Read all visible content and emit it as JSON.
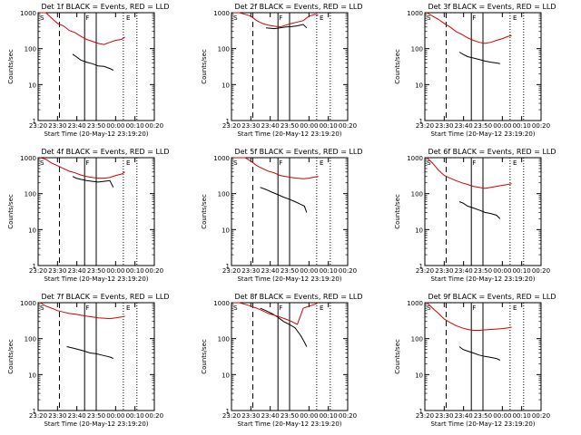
{
  "chart_data": [
    {
      "type": "line",
      "title": "Det 1f BLACK = Events, RED = LLD",
      "xlabel": "Start Time (20-May-12 23:19:20)",
      "ylabel": "Counts/sec",
      "yscale": "log",
      "ylim": [
        1,
        1000
      ],
      "xlim": [
        23.333,
        24.333
      ],
      "xticks": [
        "23:20",
        "23:30",
        "23:40",
        "23:50",
        "00:00",
        "00:10",
        "00:20"
      ],
      "yticks": [
        "1",
        "10",
        "100",
        "1000"
      ],
      "markers": [
        "S",
        "F",
        "E"
      ],
      "series": [
        {
          "name": "Events",
          "color": "#000000",
          "x": [
            23.63,
            23.66,
            23.7,
            23.75,
            23.8,
            23.85,
            23.9,
            23.95,
            23.98
          ],
          "y": [
            70,
            60,
            48,
            42,
            38,
            33,
            32,
            28,
            25
          ]
        },
        {
          "name": "LLD",
          "color": "#d00000",
          "x": [
            23.35,
            23.4,
            23.45,
            23.5,
            23.55,
            23.6,
            23.65,
            23.7,
            23.75,
            23.8,
            23.85,
            23.9,
            23.95,
            24.0,
            24.05,
            24.08
          ],
          "y": [
            1000,
            1000,
            700,
            500,
            430,
            320,
            280,
            220,
            180,
            160,
            140,
            130,
            150,
            170,
            180,
            210
          ]
        }
      ]
    },
    {
      "type": "line",
      "title": "Det 2f BLACK = Events, RED = LLD",
      "xlabel": "Start Time (20-May-12 23:19:20)",
      "ylabel": "Counts/sec",
      "yscale": "log",
      "ylim": [
        1,
        1000
      ],
      "xlim": [
        23.333,
        24.333
      ],
      "xticks": [
        "23:20",
        "23:30",
        "23:40",
        "23:50",
        "00:00",
        "00:10",
        "00:20"
      ],
      "yticks": [
        "1",
        "10",
        "100",
        "1000"
      ],
      "markers": [
        "S",
        "F",
        "E"
      ],
      "series": [
        {
          "name": "Events",
          "color": "#000000",
          "x": [
            23.63,
            23.66,
            23.7,
            23.75,
            23.8,
            23.85,
            23.9,
            23.95,
            23.98
          ],
          "y": [
            380,
            370,
            360,
            380,
            400,
            410,
            430,
            470,
            380
          ]
        },
        {
          "name": "LLD",
          "color": "#d00000",
          "x": [
            23.35,
            23.4,
            23.45,
            23.5,
            23.55,
            23.6,
            23.65,
            23.7,
            23.75,
            23.8,
            23.85,
            23.9,
            23.95,
            24.0,
            24.05,
            24.08
          ],
          "y": [
            1000,
            1000,
            900,
            800,
            600,
            500,
            450,
            420,
            400,
            450,
            500,
            550,
            600,
            800,
            900,
            850
          ]
        }
      ]
    },
    {
      "type": "line",
      "title": "Det 3f BLACK = Events, RED = LLD",
      "xlabel": "Start Time (20-May-12 23:19:20)",
      "ylabel": "Counts/sec",
      "yscale": "log",
      "ylim": [
        1,
        1000
      ],
      "xlim": [
        23.333,
        24.333
      ],
      "xticks": [
        "23:20",
        "23:30",
        "23:40",
        "23:50",
        "00:00",
        "00:10",
        "00:20"
      ],
      "yticks": [
        "1",
        "10",
        "100",
        "1000"
      ],
      "markers": [
        "S",
        "F",
        "E"
      ],
      "series": [
        {
          "name": "Events",
          "color": "#000000",
          "x": [
            23.63,
            23.66,
            23.7,
            23.75,
            23.8,
            23.85,
            23.9,
            23.95,
            23.98
          ],
          "y": [
            80,
            70,
            60,
            55,
            50,
            45,
            42,
            40,
            38
          ]
        },
        {
          "name": "LLD",
          "color": "#d00000",
          "x": [
            23.35,
            23.4,
            23.45,
            23.5,
            23.55,
            23.6,
            23.65,
            23.7,
            23.75,
            23.8,
            23.85,
            23.9,
            23.95,
            24.0,
            24.05,
            24.08
          ],
          "y": [
            1000,
            800,
            650,
            500,
            400,
            300,
            250,
            200,
            170,
            150,
            140,
            150,
            170,
            190,
            220,
            230
          ]
        }
      ]
    },
    {
      "type": "line",
      "title": "Det 4f BLACK = Events, RED = LLD",
      "xlabel": "Start Time (20-May-12 23:19:20)",
      "ylabel": "Counts/sec",
      "yscale": "log",
      "ylim": [
        1,
        1000
      ],
      "xlim": [
        23.333,
        24.333
      ],
      "xticks": [
        "23:20",
        "23:30",
        "23:40",
        "23:50",
        "00:00",
        "00:10",
        "00:20"
      ],
      "yticks": [
        "1",
        "10",
        "100",
        "1000"
      ],
      "markers": [
        "S",
        "F",
        "E"
      ],
      "series": [
        {
          "name": "Events",
          "color": "#000000",
          "x": [
            23.63,
            23.66,
            23.7,
            23.75,
            23.8,
            23.85,
            23.9,
            23.95,
            23.98
          ],
          "y": [
            300,
            270,
            250,
            230,
            220,
            210,
            220,
            230,
            150
          ]
        },
        {
          "name": "LLD",
          "color": "#d00000",
          "x": [
            23.35,
            23.4,
            23.45,
            23.5,
            23.55,
            23.6,
            23.65,
            23.7,
            23.75,
            23.8,
            23.85,
            23.9,
            23.95,
            24.0,
            24.05,
            24.08
          ],
          "y": [
            1000,
            900,
            700,
            600,
            500,
            420,
            380,
            330,
            300,
            280,
            270,
            270,
            280,
            320,
            350,
            400
          ]
        }
      ]
    },
    {
      "type": "line",
      "title": "Det 5f BLACK = Events, RED = LLD",
      "xlabel": "Start Time (20-May-12 23:19:20)",
      "ylabel": "Counts/sec",
      "yscale": "log",
      "ylim": [
        1,
        1000
      ],
      "xlim": [
        23.333,
        24.333
      ],
      "xticks": [
        "23:20",
        "23:30",
        "23:40",
        "23:50",
        "00:00",
        "00:10",
        "00:20"
      ],
      "yticks": [
        "1",
        "10",
        "100",
        "1000"
      ],
      "markers": [
        "S",
        "F",
        "E"
      ],
      "series": [
        {
          "name": "Events",
          "color": "#000000",
          "x": [
            23.58,
            23.63,
            23.68,
            23.73,
            23.78,
            23.83,
            23.88,
            23.93,
            23.96,
            23.98
          ],
          "y": [
            150,
            130,
            110,
            95,
            80,
            70,
            60,
            50,
            45,
            30
          ]
        },
        {
          "name": "LLD",
          "color": "#d00000",
          "x": [
            23.35,
            23.4,
            23.45,
            23.5,
            23.55,
            23.6,
            23.65,
            23.7,
            23.75,
            23.8,
            23.85,
            23.9,
            23.95,
            24.0,
            24.05,
            24.08
          ],
          "y": [
            1000,
            1000,
            1000,
            800,
            600,
            500,
            420,
            380,
            320,
            300,
            280,
            270,
            260,
            270,
            290,
            300
          ]
        }
      ]
    },
    {
      "type": "line",
      "title": "Det 6f BLACK = Events, RED = LLD",
      "xlabel": "Start Time (20-May-12 23:19:20)",
      "ylabel": "Counts/sec",
      "yscale": "log",
      "ylim": [
        1,
        1000
      ],
      "xlim": [
        23.333,
        24.333
      ],
      "xticks": [
        "23:20",
        "23:30",
        "23:40",
        "23:50",
        "00:00",
        "00:10",
        "00:20"
      ],
      "yticks": [
        "1",
        "10",
        "100",
        "1000"
      ],
      "markers": [
        "S",
        "F",
        "E"
      ],
      "series": [
        {
          "name": "Events",
          "color": "#000000",
          "x": [
            23.63,
            23.66,
            23.7,
            23.75,
            23.8,
            23.85,
            23.9,
            23.95,
            23.98
          ],
          "y": [
            60,
            55,
            45,
            40,
            35,
            30,
            28,
            25,
            20
          ]
        },
        {
          "name": "LLD",
          "color": "#d00000",
          "x": [
            23.35,
            23.4,
            23.45,
            23.5,
            23.55,
            23.6,
            23.65,
            23.7,
            23.75,
            23.8,
            23.85,
            23.9,
            23.95,
            24.0,
            24.05,
            24.08
          ],
          "y": [
            1000,
            700,
            450,
            320,
            270,
            230,
            200,
            180,
            160,
            150,
            140,
            150,
            160,
            170,
            180,
            190
          ]
        }
      ]
    },
    {
      "type": "line",
      "title": "Det 7f BLACK = Events, RED = LLD",
      "xlabel": "Start Time (20-May-12 23:19:20)",
      "ylabel": "Counts/sec",
      "yscale": "log",
      "ylim": [
        1,
        1000
      ],
      "xlim": [
        23.333,
        24.333
      ],
      "xticks": [
        "23:20",
        "23:30",
        "23:40",
        "23:50",
        "00:00",
        "00:10",
        "00:20"
      ],
      "yticks": [
        "1",
        "10",
        "100",
        "1000"
      ],
      "markers": [
        "S",
        "F",
        "E"
      ],
      "series": [
        {
          "name": "Events",
          "color": "#000000",
          "x": [
            23.58,
            23.63,
            23.68,
            23.73,
            23.78,
            23.83,
            23.88,
            23.93,
            23.96,
            23.98
          ],
          "y": [
            60,
            55,
            50,
            45,
            40,
            38,
            35,
            32,
            30,
            28
          ]
        },
        {
          "name": "LLD",
          "color": "#d00000",
          "x": [
            23.35,
            23.4,
            23.45,
            23.5,
            23.55,
            23.6,
            23.65,
            23.7,
            23.75,
            23.8,
            23.85,
            23.9,
            23.95,
            24.0,
            24.05,
            24.08
          ],
          "y": [
            1000,
            800,
            700,
            600,
            550,
            500,
            480,
            450,
            420,
            400,
            380,
            370,
            360,
            380,
            400,
            420
          ]
        }
      ]
    },
    {
      "type": "line",
      "title": "Det 8f BLACK = Events, RED = LLD",
      "xlabel": "Start Time (20-May-12 23:19:20)",
      "ylabel": "Counts/sec",
      "yscale": "log",
      "ylim": [
        1,
        1000
      ],
      "xlim": [
        23.333,
        24.333
      ],
      "xticks": [
        "23:20",
        "23:30",
        "23:40",
        "23:50",
        "00:00",
        "00:10",
        "00:20"
      ],
      "yticks": [
        "1",
        "10",
        "100",
        "1000"
      ],
      "markers": [
        "S",
        "F",
        "E"
      ],
      "series": [
        {
          "name": "Events",
          "color": "#000000",
          "x": [
            23.58,
            23.63,
            23.68,
            23.73,
            23.78,
            23.83,
            23.88,
            23.93,
            23.96,
            23.98
          ],
          "y": [
            700,
            600,
            500,
            400,
            300,
            250,
            200,
            120,
            80,
            60
          ]
        },
        {
          "name": "LLD",
          "color": "#d00000",
          "x": [
            23.35,
            23.4,
            23.45,
            23.5,
            23.55,
            23.6,
            23.65,
            23.7,
            23.75,
            23.8,
            23.85,
            23.9,
            23.95,
            24.0,
            24.05,
            24.08
          ],
          "y": [
            1000,
            1000,
            900,
            800,
            700,
            600,
            500,
            450,
            400,
            350,
            300,
            250,
            700,
            800,
            900,
            1000
          ]
        }
      ]
    },
    {
      "type": "line",
      "title": "Det 9f BLACK = Events, RED = LLD",
      "xlabel": "Start Time (20-May-12 23:19:20)",
      "ylabel": "Counts/sec",
      "yscale": "log",
      "ylim": [
        1,
        1000
      ],
      "xlim": [
        23.333,
        24.333
      ],
      "xticks": [
        "23:20",
        "23:30",
        "23:40",
        "23:50",
        "00:00",
        "00:10",
        "00:20"
      ],
      "yticks": [
        "1",
        "10",
        "100",
        "1000"
      ],
      "markers": [
        "S",
        "F",
        "E"
      ],
      "series": [
        {
          "name": "Events",
          "color": "#000000",
          "x": [
            23.63,
            23.66,
            23.7,
            23.75,
            23.8,
            23.85,
            23.9,
            23.95,
            23.98
          ],
          "y": [
            60,
            50,
            45,
            40,
            35,
            32,
            30,
            28,
            25
          ]
        },
        {
          "name": "LLD",
          "color": "#d00000",
          "x": [
            23.35,
            23.4,
            23.45,
            23.5,
            23.55,
            23.6,
            23.65,
            23.7,
            23.75,
            23.8,
            23.85,
            23.9,
            23.95,
            24.0,
            24.05,
            24.08
          ],
          "y": [
            1000,
            700,
            500,
            350,
            280,
            230,
            200,
            180,
            170,
            170,
            175,
            180,
            185,
            190,
            200,
            210
          ]
        }
      ]
    }
  ]
}
